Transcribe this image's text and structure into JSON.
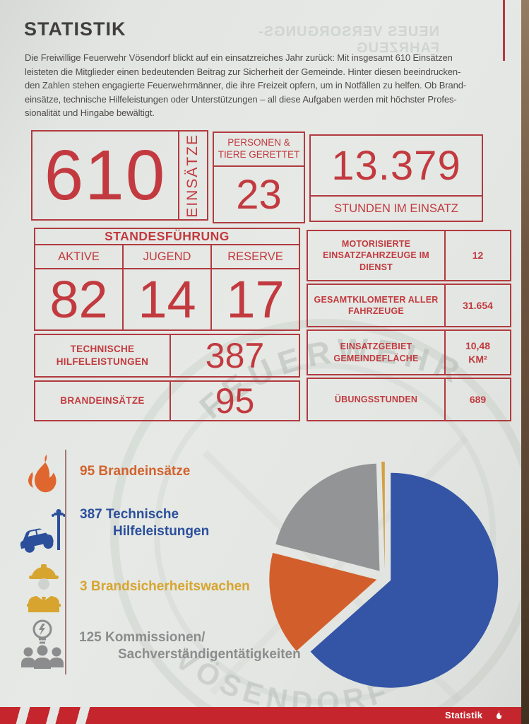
{
  "page": {
    "title": "STATISTIK",
    "intro": "Die Freiwillige Feuerwehr Vösendorf blickt auf ein einsatzreiches Jahr zurück: Mit insgesamt 610 Einsätzen\nleisteten die Mitglieder einen bedeutenden Beitrag zur Sicherheit der Gemeinde. Hinter diesen beeindrucken-\nden Zahlen stehen engagierte Feuerwehrmänner, die ihre Freizeit opfern, um in Notfällen zu helfen. Ob Brand-\neinsätze, technische Hilfeleistungen oder Unterstützungen – all diese Aufgaben werden mit höchster Profes-\nsionalität und Hingabe bewältigt.",
    "watermark": {
      "top_mirrored": "NEUES VERSORGUNGS-FAHRZEUG",
      "crest_top": "FEUERWEHR",
      "crest_bottom": "VÖSENDORF"
    },
    "footer": {
      "label": "Statistik"
    },
    "accent_red": "#c23a3f"
  },
  "stats": {
    "einsaetze": {
      "value": "610",
      "label": "EINSÄTZE"
    },
    "gerettet": {
      "label": "PERSONEN &\nTIERE GERETTET",
      "value": "23"
    },
    "stunden": {
      "value": "13.379",
      "label": "STUNDEN IM EINSATZ"
    },
    "standesfuehrung": {
      "title": "STANDESFÜHRUNG",
      "columns": [
        {
          "label": "AKTIVE",
          "value": "82"
        },
        {
          "label": "JUGEND",
          "value": "14"
        },
        {
          "label": "RESERVE",
          "value": "17"
        }
      ]
    },
    "rows": [
      {
        "label": "TECHNISCHE\nHILFELEISTUNGEN",
        "value": "387"
      },
      {
        "label": "BRANDEINSÄTZE",
        "value": "95"
      }
    ],
    "right_rows": [
      {
        "label": "MOTORISIERTE\nEINSATZFAHRZEUGE IM\nDIENST",
        "value": "12"
      },
      {
        "label": "GESAMTKILOMETER ALLER\nFAHRZEUGE",
        "value": "31.654"
      },
      {
        "label": "EINSATZGEBIET\nGEMEINDEFLÄCHE",
        "value": "10,48\nKM²"
      },
      {
        "label": "ÜBUNGSSTUNDEN",
        "value": "689"
      }
    ]
  },
  "legend": {
    "items": [
      {
        "icon": "flame-icon",
        "label": "95 Brandeinsätze",
        "color": "#d2622e"
      },
      {
        "icon": "car-crash-icon",
        "label": "387 Technische\nHilfeleistungen",
        "color": "#2c4f9c"
      },
      {
        "icon": "firefighter-icon",
        "label": "3 Brandsicherheitswachen",
        "color": "#d7a52f"
      },
      {
        "icon": "commissions-icon",
        "label": "125 Kommissionen/\nSachverständigentätigkeiten",
        "color": "#8c8c8e"
      }
    ]
  },
  "chart_data": {
    "type": "pie",
    "total": 610,
    "start_angle_deg": 0,
    "direction": "clockwise",
    "legend_position": "left",
    "series": [
      {
        "name": "Technische Hilfeleistungen",
        "value": 387,
        "color": "#3454a5",
        "explode": 9
      },
      {
        "name": "Brandeinsätze",
        "value": 95,
        "color": "#d25f2b",
        "explode": 12
      },
      {
        "name": "Kommissionen/Sachverständigentätigkeiten",
        "value": 125,
        "color": "#939496",
        "explode": 12
      },
      {
        "name": "Brandsicherheitswachen",
        "value": 3,
        "color": "#d4a042",
        "explode": 12
      }
    ]
  }
}
